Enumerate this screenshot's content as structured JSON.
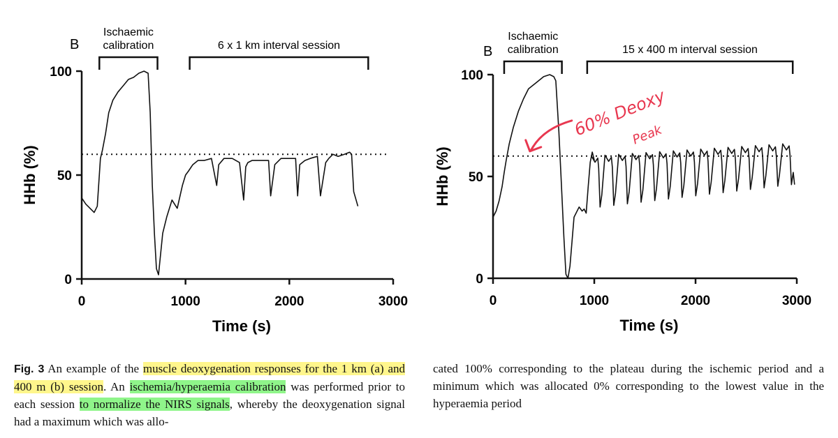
{
  "colors": {
    "line": "#111111",
    "annotation": "#e8374f",
    "highlight_yellow": "#fff68c",
    "highlight_green": "#8ff58a"
  },
  "chart_data": [
    {
      "type": "line",
      "panel_letter": "B",
      "xlabel": "Time (s)",
      "ylabel": "HHb (%)",
      "xlim": [
        0,
        3000
      ],
      "ylim": [
        0,
        100
      ],
      "xticks": [
        0,
        1000,
        2000,
        3000
      ],
      "yticks": [
        0,
        50,
        100
      ],
      "threshold": {
        "y": 60,
        "x_start": 0,
        "x_end": 2950,
        "style": "dotted"
      },
      "brackets": [
        {
          "label_lines": [
            "Ischaemic",
            "calibration"
          ],
          "x_start": 170,
          "x_end": 730
        },
        {
          "label_lines": [
            "6 x 1 km interval session"
          ],
          "x_start": 1040,
          "x_end": 2760
        }
      ],
      "series": [
        {
          "name": "HHb",
          "x": [
            0,
            40,
            80,
            120,
            150,
            180,
            200,
            230,
            260,
            300,
            350,
            400,
            450,
            500,
            550,
            600,
            640,
            660,
            680,
            700,
            720,
            740,
            760,
            780,
            820,
            870,
            920,
            970,
            1000,
            1030,
            1070,
            1120,
            1180,
            1250,
            1300,
            1320,
            1370,
            1450,
            1520,
            1560,
            1580,
            1600,
            1640,
            1700,
            1760,
            1800,
            1820,
            1860,
            1900,
            1920,
            1950,
            2000,
            2060,
            2080,
            2100,
            2150,
            2200,
            2270,
            2300,
            2350,
            2380,
            2420,
            2470,
            2530,
            2580,
            2600,
            2620,
            2660
          ],
          "y": [
            39,
            36,
            34,
            32,
            35,
            58,
            62,
            70,
            80,
            86,
            90,
            93,
            96,
            97,
            99,
            100,
            99,
            80,
            45,
            22,
            5,
            2,
            12,
            22,
            30,
            38,
            34,
            45,
            50,
            52,
            55,
            57,
            57,
            58,
            45,
            55,
            58,
            58,
            56,
            38,
            54,
            56,
            57,
            57,
            57,
            57,
            40,
            55,
            57,
            58,
            58,
            58,
            58,
            40,
            55,
            57,
            58,
            59,
            40,
            56,
            58,
            60,
            59,
            60,
            61,
            60,
            42,
            35
          ]
        }
      ]
    },
    {
      "type": "line",
      "panel_letter": "B",
      "xlabel": "Time (s)",
      "ylabel": "HHb (%)",
      "xlim": [
        0,
        3000
      ],
      "ylim": [
        0,
        100
      ],
      "xticks": [
        0,
        1000,
        2000,
        3000
      ],
      "yticks": [
        0,
        50,
        100
      ],
      "threshold": {
        "y": 60,
        "x_start": 0,
        "x_end": 2950,
        "style": "dotted"
      },
      "brackets": [
        {
          "label_lines": [
            "Ischaemic",
            "calibration"
          ],
          "x_start": 110,
          "x_end": 680
        },
        {
          "label_lines": [
            "15 x 400 m interval session"
          ],
          "x_start": 930,
          "x_end": 2960
        }
      ],
      "annotation": {
        "text_lines": [
          "60% Deoxy",
          "Peak"
        ],
        "arrow_target_x": 350,
        "arrow_target_y": 61
      },
      "series": [
        {
          "name": "HHb",
          "x": [
            0,
            30,
            60,
            90,
            110,
            130,
            160,
            200,
            250,
            300,
            350,
            400,
            450,
            500,
            560,
            600,
            620,
            650,
            670,
            700,
            720,
            740,
            760,
            780,
            800,
            850,
            880,
            900,
            920,
            940,
            960,
            980,
            1000
          ],
          "y": [
            30,
            33,
            38,
            45,
            52,
            58,
            66,
            74,
            82,
            88,
            93,
            95,
            97,
            99,
            100,
            99,
            97,
            72,
            52,
            20,
            2,
            0,
            6,
            18,
            30,
            35,
            33,
            34,
            32,
            45,
            57,
            62,
            58
          ],
          "intervals": {
            "start_x": 960,
            "period": 135,
            "count": 15,
            "peak_start": 60,
            "peak_end": 66,
            "trough_start": 35,
            "trough_end": 46,
            "end_value": 46
          }
        }
      ]
    }
  ],
  "caption": {
    "fig_label": "Fig. 3",
    "left_segments": [
      {
        "text": " An example of the ",
        "style": ""
      },
      {
        "text": "muscle deoxygenation responses for the 1 km (a) and 400 m (b) session",
        "style": "yellow"
      },
      {
        "text": ". An ",
        "style": ""
      },
      {
        "text": "ischemia/hyperaemia calibration",
        "style": "green"
      },
      {
        "text": " was performed prior to each session ",
        "style": ""
      },
      {
        "text": "to normalize the NIRS signals",
        "style": "green"
      },
      {
        "text": ", whereby the deoxygenation signal had a maximum which was allo-",
        "style": ""
      }
    ],
    "right_text": "cated 100% corresponding to the plateau during the ischemic period and a minimum which was allocated 0% corresponding to the lowest value in the hyperaemia period"
  }
}
